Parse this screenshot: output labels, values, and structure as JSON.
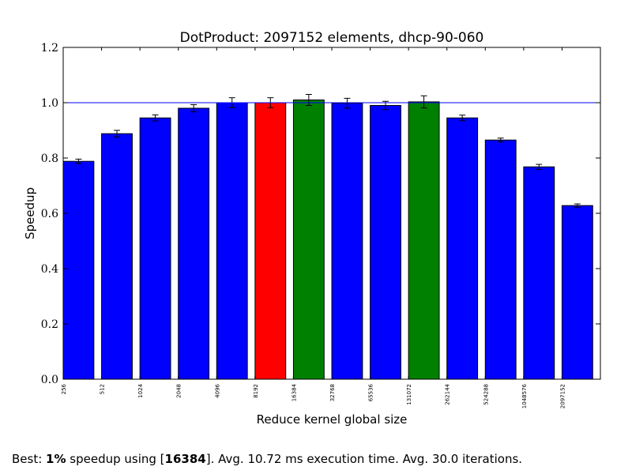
{
  "chart_data": {
    "type": "bar",
    "title": "DotProduct: 2097152 elements, dhcp-90-060",
    "xlabel": "Reduce kernel global size",
    "ylabel": "Speedup",
    "ylim": [
      0,
      1.2
    ],
    "yticks": [
      "0.0",
      "0.2",
      "0.4",
      "0.6",
      "0.8",
      "1.0",
      "1.2"
    ],
    "reference_line": 1.0,
    "categories": [
      "256",
      "512",
      "1024",
      "2048",
      "4096",
      "8192",
      "16384",
      "32768",
      "65536",
      "131072",
      "262144",
      "524288",
      "1048576",
      "2097152"
    ],
    "values": [
      0.788,
      0.888,
      0.945,
      0.98,
      1.0,
      1.0,
      1.01,
      0.998,
      0.99,
      1.003,
      0.945,
      0.865,
      0.768,
      0.628
    ],
    "errors": [
      0.008,
      0.012,
      0.011,
      0.013,
      0.018,
      0.018,
      0.02,
      0.018,
      0.015,
      0.022,
      0.01,
      0.007,
      0.009,
      0.006
    ],
    "bar_colors": [
      "#0000ff",
      "#0000ff",
      "#0000ff",
      "#0000ff",
      "#0000ff",
      "#ff0000",
      "#008000",
      "#0000ff",
      "#0000ff",
      "#008000",
      "#0000ff",
      "#0000ff",
      "#0000ff",
      "#0000ff"
    ],
    "grid": false
  },
  "caption": {
    "prefix": "Best: ",
    "pct": "1%",
    "mid": " speedup using [",
    "best": "16384",
    "suffix": "]. Avg.  10.72 ms execution time. Avg. 30.0 iterations."
  }
}
